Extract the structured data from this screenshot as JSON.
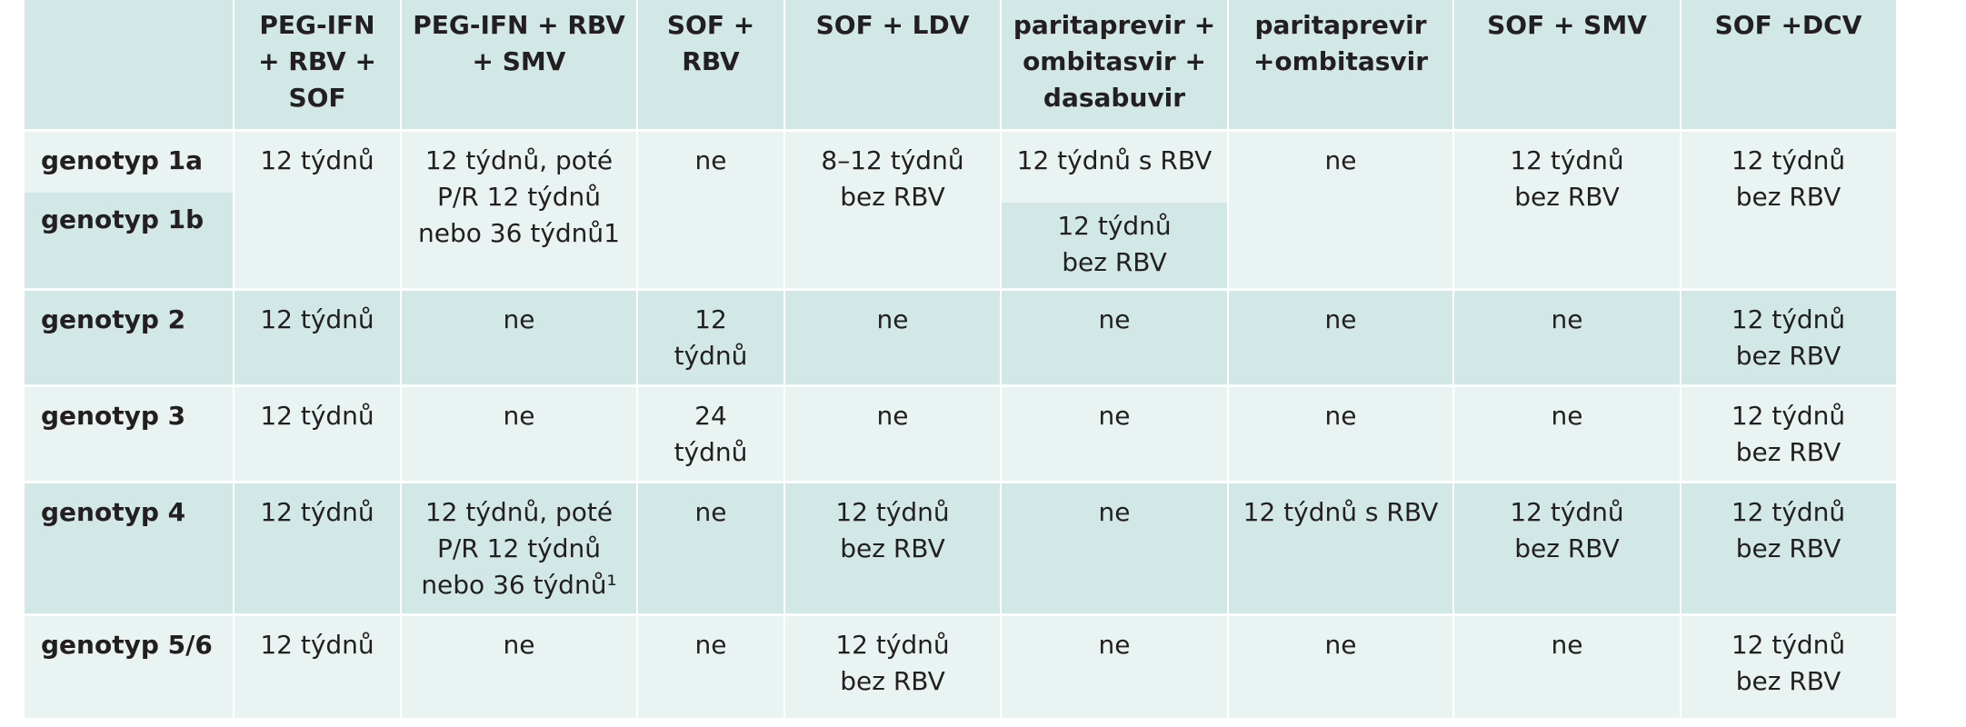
{
  "table": {
    "header": [
      "",
      "PEG-IFN + RBV + SOF",
      "PEG-IFN + RBV + SMV",
      "SOF + RBV",
      "SOF + LDV",
      "paritaprevir + ombitasvir + dasabuvir",
      "paritaprevir +ombitasvir",
      "SOF + SMV",
      "SOF +DCV"
    ],
    "header_lines": [
      [],
      [
        "PEG-IFN",
        "+ RBV +",
        "SOF"
      ],
      [
        "PEG-IFN + RBV",
        "+ SMV"
      ],
      [
        "SOF +",
        "RBV"
      ],
      [
        "SOF + LDV"
      ],
      [
        "paritaprevir +",
        "ombitasvir +",
        "dasabuvir"
      ],
      [
        "paritaprevir",
        "+ombitasvir"
      ],
      [
        "SOF + SMV"
      ],
      [
        "SOF +DCV"
      ]
    ],
    "rows": [
      {
        "label": "genotyp 1a"
      },
      {
        "label": "genotyp 1b"
      },
      {
        "label": "genotyp 2"
      },
      {
        "label": "genotyp 3"
      },
      {
        "label": "genotyp 4"
      },
      {
        "label": "genotyp 5/6"
      }
    ],
    "g1": {
      "peg_rbv_sof": [
        "12 týdnů"
      ],
      "peg_rbv_smv": [
        "12 týdnů, poté",
        "P/R 12 týdnů",
        "nebo 36 týdnů1"
      ],
      "sof_rbv": [
        "ne"
      ],
      "sof_ldv": [
        "8–12 týdnů",
        "bez RBV"
      ],
      "pod_1a": [
        "12 týdnů s RBV"
      ],
      "pod_1b": [
        "12 týdnů",
        "bez RBV"
      ],
      "po": [
        "ne"
      ],
      "sof_smv": [
        "12 týdnů",
        "bez RBV"
      ],
      "sof_dcv": [
        "12 týdnů",
        "bez RBV"
      ]
    },
    "g2": [
      [
        "12 týdnů"
      ],
      [
        "ne"
      ],
      [
        "12",
        "týdnů"
      ],
      [
        "ne"
      ],
      [
        "ne"
      ],
      [
        "ne"
      ],
      [
        "ne"
      ],
      [
        "12 týdnů",
        "bez RBV"
      ]
    ],
    "g3": [
      [
        "12 týdnů"
      ],
      [
        "ne"
      ],
      [
        "24",
        "týdnů"
      ],
      [
        "ne"
      ],
      [
        "ne"
      ],
      [
        "ne"
      ],
      [
        "ne"
      ],
      [
        "12 týdnů",
        "bez RBV"
      ]
    ],
    "g4": [
      [
        "12 týdnů"
      ],
      [
        "12 týdnů, poté",
        "P/R 12 týdnů",
        "nebo 36 týdnů¹"
      ],
      [
        "ne"
      ],
      [
        "12 týdnů",
        "bez RBV"
      ],
      [
        "ne"
      ],
      [
        "12 týdnů s RBV"
      ],
      [
        "12 týdnů",
        "bez RBV"
      ],
      [
        "12 týdnů",
        "bez RBV"
      ]
    ],
    "g56": [
      [
        "12 týdnů"
      ],
      [
        "ne"
      ],
      [
        "ne"
      ],
      [
        "12 týdnů",
        "bez RBV"
      ],
      [
        "ne"
      ],
      [
        "ne"
      ],
      [
        "ne"
      ],
      [
        "12 týdnů",
        "bez RBV"
      ]
    ]
  },
  "colors": {
    "light": "#e9f3f2",
    "dark": "#d2e8e6",
    "text": "#231f20"
  }
}
